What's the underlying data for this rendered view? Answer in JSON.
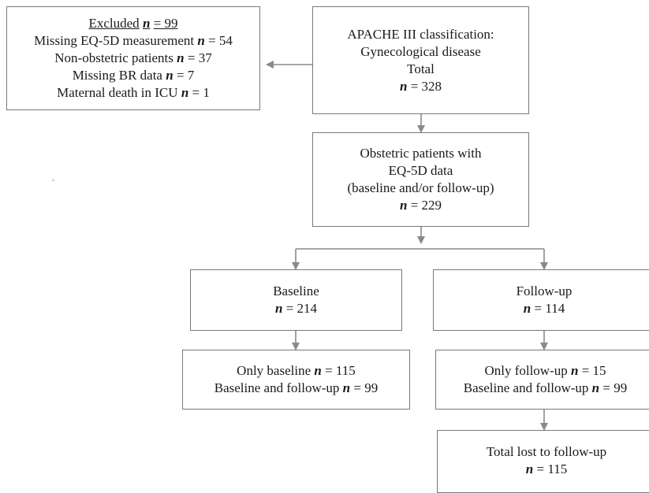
{
  "n_symbol": "n",
  "excluded": {
    "title": "Excluded",
    "title_n": "= 99",
    "rows": [
      {
        "label": "Missing EQ-5D measurement",
        "value": "= 54"
      },
      {
        "label": "Non-obstetric patients",
        "value": "= 37"
      },
      {
        "label": "Missing BR data",
        "value": "= 7"
      },
      {
        "label": "Maternal death in ICU",
        "value": "= 1"
      }
    ]
  },
  "apache": {
    "line1": "APACHE III classification:",
    "line2": "Gynecological disease",
    "line3": "Total",
    "value": "= 328"
  },
  "obstetric": {
    "line1": "Obstetric patients with",
    "line2": "EQ-5D data",
    "line3": "(baseline and/or follow-up)",
    "value": "= 229"
  },
  "baseline": {
    "title": "Baseline",
    "value": "= 214"
  },
  "followup": {
    "title": "Follow-up",
    "value": "= 114"
  },
  "baseline_split": {
    "row1_label": "Only baseline",
    "row1_value": "= 115",
    "row2_label": "Baseline and follow-up",
    "row2_value": "= 99"
  },
  "followup_split": {
    "row1_label": "Only follow-up",
    "row1_value": "= 15",
    "row2_label": "Baseline and follow-up",
    "row2_value": "= 99"
  },
  "lost": {
    "title": "Total lost to follow-up",
    "value": "= 115"
  }
}
